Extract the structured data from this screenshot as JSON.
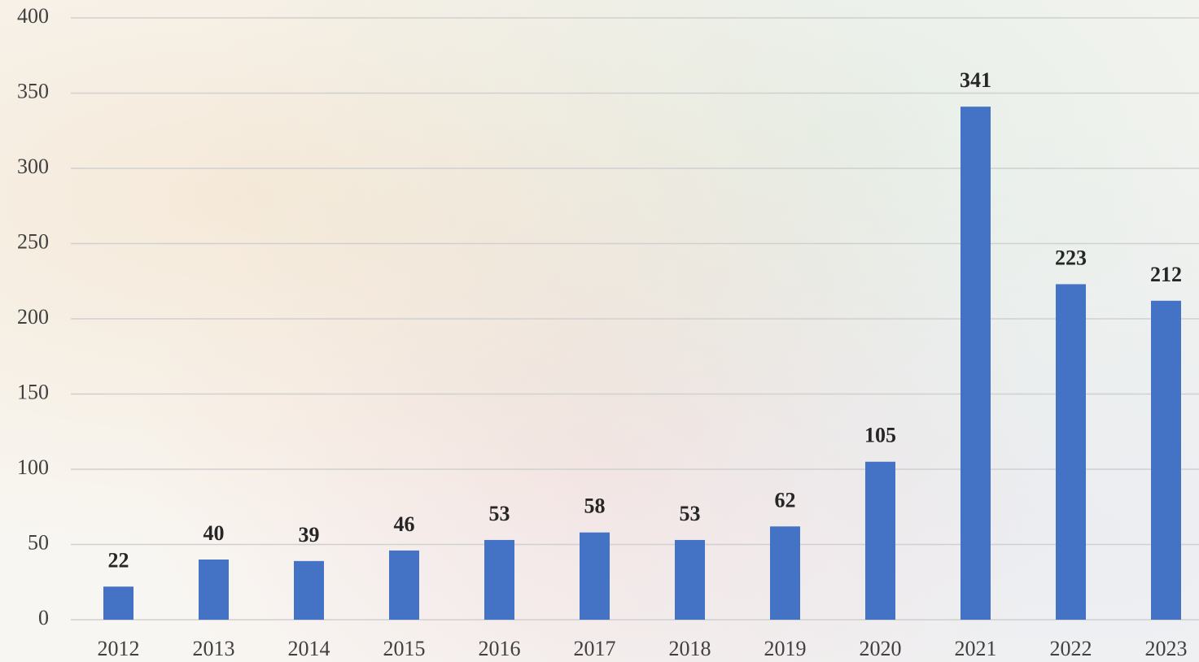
{
  "chart_data": {
    "type": "bar",
    "categories": [
      "2012",
      "2013",
      "2014",
      "2015",
      "2016",
      "2017",
      "2018",
      "2019",
      "2020",
      "2021",
      "2022",
      "2023"
    ],
    "values": [
      22,
      40,
      39,
      46,
      53,
      58,
      53,
      62,
      105,
      341,
      223,
      212
    ],
    "color": "#4472c4",
    "ylim": [
      0,
      400
    ],
    "yticks": [
      0,
      50,
      100,
      150,
      200,
      250,
      300,
      350,
      400
    ],
    "grid": true
  }
}
